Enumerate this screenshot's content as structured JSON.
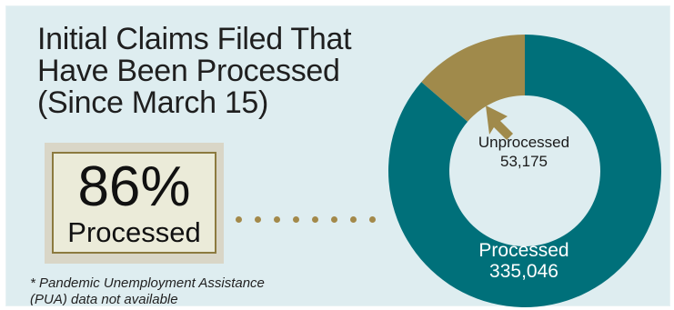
{
  "title_lines": [
    "Initial Claims Filed That",
    "Have Been Processed",
    "(Since March 15)"
  ],
  "stat": {
    "value": "86%",
    "label": "Processed"
  },
  "footnote_lines": [
    "* Pandemic Unemployment Assistance",
    "(PUA) data not available"
  ],
  "colors": {
    "processed": "#00707a",
    "unprocessed": "#a08a4b",
    "background": "#deedf0"
  },
  "chart_data": {
    "type": "pie",
    "style": "donut",
    "title": "Initial Claims Filed That Have Been Processed (Since March 15)",
    "slices": [
      {
        "label": "Unprocessed",
        "value": 53175,
        "value_label": "53,175"
      },
      {
        "label": "Processed",
        "value": 335046,
        "value_label": "335,046"
      }
    ],
    "annotation": "86% Processed"
  }
}
